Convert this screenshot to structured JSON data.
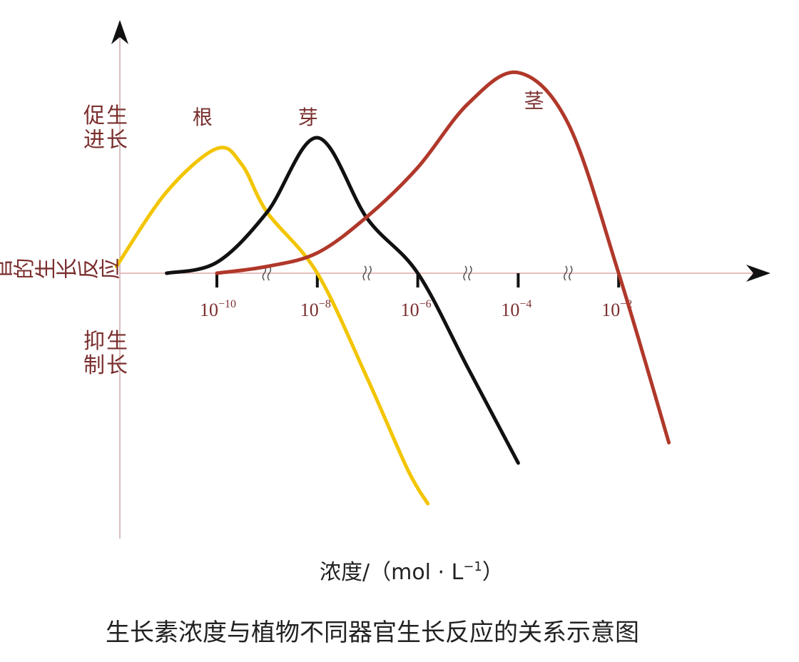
{
  "chart_data": {
    "type": "line",
    "title": "生长素浓度与植物不同器官生长反应的关系示意图",
    "xlabel": "浓度/（mol · L",
    "xlabel_sup": "−1",
    "xlabel_tail": "）",
    "ylabel": "植物器官的生长反应",
    "ylabel_positive": "促进生长",
    "ylabel_negative": "抑制生长",
    "x_scale": "log",
    "x_ticks": [
      {
        "base": "10",
        "exp": "−10",
        "value": 1e-10
      },
      {
        "base": "10",
        "exp": "−8",
        "value": 1e-08
      },
      {
        "base": "10",
        "exp": "−6",
        "value": 1e-06
      },
      {
        "base": "10",
        "exp": "−4",
        "value": 0.0001
      },
      {
        "base": "10",
        "exp": "−2",
        "value": 0.01
      }
    ],
    "axis_break_marks": true,
    "y_range": [
      -1.8,
      1.5
    ],
    "series": [
      {
        "name": "根",
        "color": "#f2c500",
        "points": [
          [
            -12,
            0.05
          ],
          [
            -11,
            0.6
          ],
          [
            -10,
            0.92
          ],
          [
            -9.5,
            0.8
          ],
          [
            -9,
            0.45
          ],
          [
            -8,
            0.0
          ],
          [
            -7,
            -0.78
          ],
          [
            -6.2,
            -1.45
          ],
          [
            -5.8,
            -1.7
          ]
        ]
      },
      {
        "name": "芽",
        "color": "#111111",
        "points": [
          [
            -11,
            0.0
          ],
          [
            -10,
            0.08
          ],
          [
            -9,
            0.45
          ],
          [
            -8,
            1.0
          ],
          [
            -7,
            0.4
          ],
          [
            -6,
            0.0
          ],
          [
            -5,
            -0.7
          ],
          [
            -4,
            -1.4
          ]
        ]
      },
      {
        "name": "茎",
        "color": "#b0382a",
        "points": [
          [
            -10,
            0.0
          ],
          [
            -9,
            0.05
          ],
          [
            -8,
            0.15
          ],
          [
            -7,
            0.42
          ],
          [
            -6,
            0.78
          ],
          [
            -5,
            1.25
          ],
          [
            -4,
            1.48
          ],
          [
            -3,
            1.1
          ],
          [
            -2,
            0.0
          ],
          [
            -1,
            -1.25
          ]
        ]
      }
    ]
  }
}
